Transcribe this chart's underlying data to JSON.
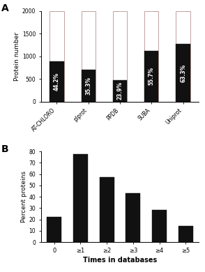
{
  "panel_A": {
    "categories": [
      "AT-CHLORO",
      "plprot",
      "PPDB",
      "SUBA",
      "Uniprot"
    ],
    "total": 2000,
    "black_values": [
      884,
      706,
      478,
      1114,
      1266
    ],
    "percentages": [
      "44.2%",
      "35.3%",
      "23.9%",
      "55.7%",
      "63.3%"
    ],
    "bar_color_black": "#111111",
    "bar_color_white": "#ffffff",
    "bar_edge_color": "#c0a0a0",
    "ylabel": "Protein number",
    "yticks": [
      0,
      500,
      1000,
      1500,
      2000
    ],
    "panel_label": "A"
  },
  "panel_B": {
    "categories": [
      "0",
      "≥1",
      "≥2",
      "≥3",
      "≥4",
      "≥5"
    ],
    "values": [
      22.5,
      77.5,
      57.0,
      43.0,
      28.5,
      14.0
    ],
    "bar_color": "#111111",
    "ylabel": "Percent proteins",
    "xlabel": "Times in databases",
    "yticks": [
      0,
      10,
      20,
      30,
      40,
      50,
      60,
      70,
      80
    ],
    "panel_label": "B"
  },
  "background_color": "#ffffff",
  "text_color": "#111111"
}
